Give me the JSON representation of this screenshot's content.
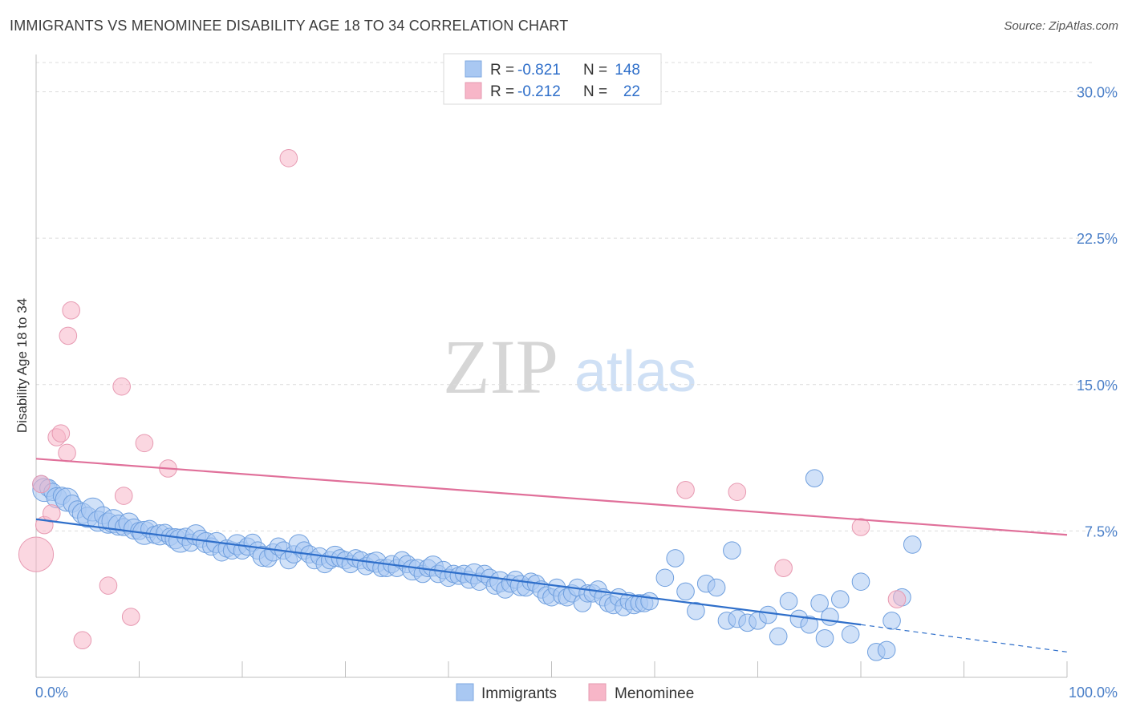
{
  "header": {
    "title": "IMMIGRANTS VS MENOMINEE DISABILITY AGE 18 TO 34 CORRELATION CHART",
    "source": "Source: ZipAtlas.com"
  },
  "watermark": {
    "zip": "ZIP",
    "atlas": "atlas"
  },
  "legend": {
    "rows": [
      {
        "r_label": "R =",
        "r_value": "-0.821",
        "n_label": "N =",
        "n_value": "148",
        "color": "#a9c8f2"
      },
      {
        "r_label": "R =",
        "r_value": "-0.212",
        "n_label": "N =",
        "n_value": "22",
        "color": "#f7b6c8"
      }
    ]
  },
  "bottom_legend": {
    "items": [
      {
        "label": "Immigrants",
        "color": "#a9c8f2"
      },
      {
        "label": "Menominee",
        "color": "#f7b6c8"
      }
    ]
  },
  "chart_data": {
    "type": "scatter",
    "title": "IMMIGRANTS VS MENOMINEE DISABILITY AGE 18 TO 34 CORRELATION CHART",
    "xlabel": "",
    "ylabel": "Disability Age 18 to 34",
    "xlim": [
      0,
      100
    ],
    "ylim": [
      0,
      31.5
    ],
    "x_tick_labels": [
      "0.0%",
      "100.0%"
    ],
    "y_ticks": [
      7.5,
      15.0,
      22.5,
      30.0
    ],
    "y_tick_labels": [
      "7.5%",
      "15.0%",
      "22.5%",
      "30.0%"
    ],
    "grid": "horizontal dashed",
    "legend_position": "top-center",
    "colors": {
      "immigrants": "#a9c8f2",
      "immigrants_line": "#2f6fca",
      "menominee": "#f7b6c8",
      "menominee_line": "#e0709a"
    },
    "series": [
      {
        "name": "Immigrants",
        "r": -0.821,
        "n": 148,
        "trend": {
          "x0": 0,
          "y0": 8.1,
          "x1": 80,
          "y1": 2.7,
          "dash_to_x": 100,
          "dash_to_y": 1.3
        },
        "points": [
          [
            0.5,
            9.9,
            1.2
          ],
          [
            0.8,
            9.6,
            1.6
          ],
          [
            1.2,
            9.7,
            1.2
          ],
          [
            1.6,
            9.5,
            1.2
          ],
          [
            2.0,
            9.2,
            1.4
          ],
          [
            2.5,
            9.3,
            1.2
          ],
          [
            3.0,
            9.1,
            1.6
          ],
          [
            3.5,
            8.9,
            1.2
          ],
          [
            4.0,
            8.6,
            1.2
          ],
          [
            4.5,
            8.4,
            1.4
          ],
          [
            5.0,
            8.2,
            1.4
          ],
          [
            5.5,
            8.6,
            1.6
          ],
          [
            6.0,
            8.0,
            1.4
          ],
          [
            6.5,
            8.3,
            1.2
          ],
          [
            7.0,
            7.9,
            1.4
          ],
          [
            7.5,
            8.0,
            1.6
          ],
          [
            8.0,
            7.8,
            1.4
          ],
          [
            8.5,
            7.7,
            1.2
          ],
          [
            9.0,
            7.9,
            1.4
          ],
          [
            9.5,
            7.6,
            1.4
          ],
          [
            10.0,
            7.5,
            1.2
          ],
          [
            10.5,
            7.4,
            1.6
          ],
          [
            11.0,
            7.6,
            1.2
          ],
          [
            11.5,
            7.3,
            1.2
          ],
          [
            12.0,
            7.3,
            1.4
          ],
          [
            12.5,
            7.4,
            1.2
          ],
          [
            13.0,
            7.2,
            1.2
          ],
          [
            13.5,
            7.1,
            1.4
          ],
          [
            14.0,
            7.0,
            1.6
          ],
          [
            14.5,
            7.2,
            1.2
          ],
          [
            15.0,
            6.9,
            1.2
          ],
          [
            15.5,
            7.3,
            1.4
          ],
          [
            16.0,
            7.1,
            1.2
          ],
          [
            16.5,
            6.9,
            1.4
          ],
          [
            17.0,
            6.7,
            1.2
          ],
          [
            17.5,
            6.9,
            1.4
          ],
          [
            18.0,
            6.4,
            1.2
          ],
          [
            18.5,
            6.6,
            1.2
          ],
          [
            19.0,
            6.5,
            1.2
          ],
          [
            19.5,
            6.8,
            1.4
          ],
          [
            20.0,
            6.5,
            1.2
          ],
          [
            20.5,
            6.7,
            1.2
          ],
          [
            21.0,
            6.9,
            1.2
          ],
          [
            21.5,
            6.5,
            1.2
          ],
          [
            22.0,
            6.2,
            1.4
          ],
          [
            22.5,
            6.1,
            1.2
          ],
          [
            23.0,
            6.4,
            1.2
          ],
          [
            23.5,
            6.7,
            1.2
          ],
          [
            24.0,
            6.5,
            1.2
          ],
          [
            24.5,
            6.0,
            1.2
          ],
          [
            25.0,
            6.3,
            1.2
          ],
          [
            25.5,
            6.8,
            1.4
          ],
          [
            26.0,
            6.5,
            1.2
          ],
          [
            26.5,
            6.3,
            1.2
          ],
          [
            27.0,
            6.0,
            1.2
          ],
          [
            27.5,
            6.2,
            1.2
          ],
          [
            28.0,
            5.8,
            1.2
          ],
          [
            28.5,
            6.0,
            1.2
          ],
          [
            29.0,
            6.2,
            1.4
          ],
          [
            29.5,
            6.1,
            1.2
          ],
          [
            30.0,
            6.0,
            1.2
          ],
          [
            30.5,
            5.8,
            1.2
          ],
          [
            31.0,
            6.1,
            1.2
          ],
          [
            31.5,
            6.0,
            1.2
          ],
          [
            32.0,
            5.7,
            1.2
          ],
          [
            32.5,
            5.9,
            1.2
          ],
          [
            33.0,
            5.9,
            1.4
          ],
          [
            33.5,
            5.6,
            1.2
          ],
          [
            34.0,
            5.6,
            1.2
          ],
          [
            34.5,
            5.8,
            1.2
          ],
          [
            35.0,
            5.6,
            1.2
          ],
          [
            35.5,
            6.0,
            1.2
          ],
          [
            36.0,
            5.8,
            1.2
          ],
          [
            36.5,
            5.5,
            1.4
          ],
          [
            37.0,
            5.6,
            1.2
          ],
          [
            37.5,
            5.3,
            1.2
          ],
          [
            38.0,
            5.6,
            1.2
          ],
          [
            38.5,
            5.7,
            1.4
          ],
          [
            39.0,
            5.3,
            1.2
          ],
          [
            39.5,
            5.5,
            1.2
          ],
          [
            40.0,
            5.1,
            1.2
          ],
          [
            40.5,
            5.3,
            1.2
          ],
          [
            41.0,
            5.2,
            1.2
          ],
          [
            41.5,
            5.3,
            1.2
          ],
          [
            42.0,
            5.0,
            1.2
          ],
          [
            42.5,
            5.3,
            1.4
          ],
          [
            43.0,
            4.9,
            1.2
          ],
          [
            43.5,
            5.3,
            1.2
          ],
          [
            44.0,
            5.1,
            1.2
          ],
          [
            44.5,
            4.7,
            1.2
          ],
          [
            45.0,
            4.9,
            1.4
          ],
          [
            45.5,
            4.5,
            1.2
          ],
          [
            46.0,
            4.8,
            1.2
          ],
          [
            46.5,
            5.0,
            1.2
          ],
          [
            47.0,
            4.7,
            1.4
          ],
          [
            47.5,
            4.6,
            1.2
          ],
          [
            48.0,
            4.9,
            1.2
          ],
          [
            48.5,
            4.8,
            1.2
          ],
          [
            49.0,
            4.5,
            1.2
          ],
          [
            49.5,
            4.2,
            1.2
          ],
          [
            50.0,
            4.1,
            1.2
          ],
          [
            50.5,
            4.6,
            1.2
          ],
          [
            51.0,
            4.2,
            1.2
          ],
          [
            51.5,
            4.1,
            1.2
          ],
          [
            52.0,
            4.3,
            1.2
          ],
          [
            52.5,
            4.6,
            1.2
          ],
          [
            53.0,
            3.8,
            1.2
          ],
          [
            53.5,
            4.3,
            1.2
          ],
          [
            54.0,
            4.3,
            1.2
          ],
          [
            54.5,
            4.5,
            1.2
          ],
          [
            55.0,
            4.1,
            1.2
          ],
          [
            55.5,
            3.8,
            1.2
          ],
          [
            56.0,
            3.7,
            1.2
          ],
          [
            56.5,
            4.1,
            1.2
          ],
          [
            57.0,
            3.6,
            1.2
          ],
          [
            57.5,
            3.9,
            1.2
          ],
          [
            58.0,
            3.7,
            1.2
          ],
          [
            58.5,
            3.8,
            1.2
          ],
          [
            59.0,
            3.8,
            1.2
          ],
          [
            59.5,
            3.9,
            1.2
          ],
          [
            61.0,
            5.1,
            1.2
          ],
          [
            62.0,
            6.1,
            1.2
          ],
          [
            63.0,
            4.4,
            1.2
          ],
          [
            64.0,
            3.4,
            1.2
          ],
          [
            65.0,
            4.8,
            1.2
          ],
          [
            66.0,
            4.6,
            1.2
          ],
          [
            67.0,
            2.9,
            1.2
          ],
          [
            67.5,
            6.5,
            1.2
          ],
          [
            68.0,
            3.0,
            1.2
          ],
          [
            69.0,
            2.8,
            1.2
          ],
          [
            70.0,
            2.9,
            1.2
          ],
          [
            71.0,
            3.2,
            1.2
          ],
          [
            72.0,
            2.1,
            1.2
          ],
          [
            73.0,
            3.9,
            1.2
          ],
          [
            74.0,
            3.0,
            1.2
          ],
          [
            75.0,
            2.7,
            1.2
          ],
          [
            76.0,
            3.8,
            1.2
          ],
          [
            76.5,
            2.0,
            1.2
          ],
          [
            77.0,
            3.1,
            1.2
          ],
          [
            78.0,
            4.0,
            1.2
          ],
          [
            79.0,
            2.2,
            1.2
          ],
          [
            80.0,
            4.9,
            1.2
          ],
          [
            81.5,
            1.3,
            1.2
          ],
          [
            82.5,
            1.4,
            1.2
          ],
          [
            83.0,
            2.9,
            1.2
          ],
          [
            84.0,
            4.1,
            1.2
          ],
          [
            85.0,
            6.8,
            1.2
          ],
          [
            75.5,
            10.2,
            1.2
          ]
        ]
      },
      {
        "name": "Menominee",
        "r": -0.212,
        "n": 22,
        "trend": {
          "x0": 0,
          "y0": 11.2,
          "x1": 100,
          "y1": 7.3
        },
        "points": [
          [
            0.5,
            9.9,
            1.2
          ],
          [
            0.8,
            7.8,
            1.2
          ],
          [
            1.5,
            8.4,
            1.2
          ],
          [
            2.0,
            12.3,
            1.2
          ],
          [
            2.4,
            12.5,
            1.2
          ],
          [
            3.0,
            11.5,
            1.2
          ],
          [
            3.1,
            17.5,
            1.2
          ],
          [
            3.4,
            18.8,
            1.2
          ],
          [
            4.5,
            1.9,
            1.2
          ],
          [
            7.0,
            4.7,
            1.2
          ],
          [
            8.3,
            14.9,
            1.2
          ],
          [
            8.5,
            9.3,
            1.2
          ],
          [
            9.2,
            3.1,
            1.2
          ],
          [
            10.5,
            12.0,
            1.2
          ],
          [
            12.8,
            10.7,
            1.2
          ],
          [
            24.5,
            26.6,
            1.2
          ],
          [
            63.0,
            9.6,
            1.2
          ],
          [
            68.0,
            9.5,
            1.2
          ],
          [
            72.5,
            5.6,
            1.2
          ],
          [
            80.0,
            7.7,
            1.2
          ],
          [
            83.5,
            4.0,
            1.2
          ],
          [
            0.0,
            6.3,
            2.4
          ]
        ]
      }
    ]
  }
}
